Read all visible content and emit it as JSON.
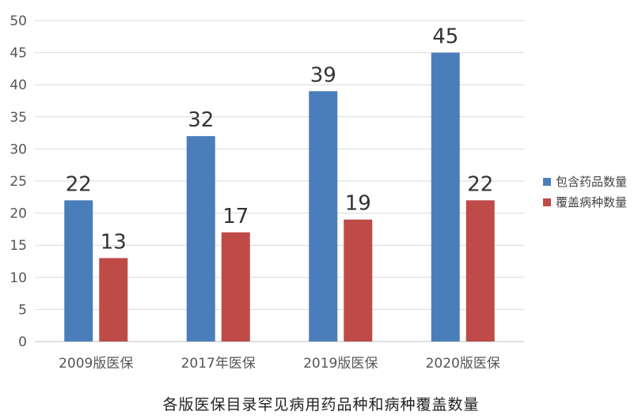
{
  "caption": "各版医保目录罕见病用药品种和病种覆盖数量",
  "chart_data": {
    "type": "bar",
    "title": "",
    "categories": [
      "2009版医保",
      "2017年医保",
      "2019版医保",
      "2020版医保"
    ],
    "series": [
      {
        "name": "包含药品数量",
        "color": "#4a7ebb",
        "values": [
          22,
          32,
          39,
          45
        ]
      },
      {
        "name": "覆盖病种数量",
        "color": "#be4b48",
        "values": [
          13,
          17,
          19,
          22
        ]
      }
    ],
    "ylim": [
      0,
      50
    ],
    "yticks": [
      0,
      5,
      10,
      15,
      20,
      25,
      30,
      35,
      40,
      45,
      50
    ],
    "grid": true,
    "legend_position": "right",
    "data_labels": true
  }
}
